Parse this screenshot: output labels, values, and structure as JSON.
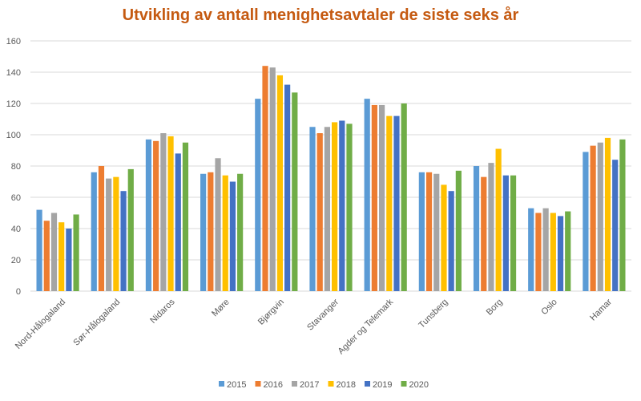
{
  "colors": {
    "title": "#c55a11",
    "series": [
      "#5b9bd5",
      "#ed7d31",
      "#a5a5a5",
      "#ffc000",
      "#4472c4",
      "#70ad47"
    ],
    "grid": "#d9d9d9",
    "axis_text": "#595959"
  },
  "chart_data": {
    "type": "bar",
    "title": "Utvikling av antall menighetsavtaler de siste seks år",
    "xlabel": "",
    "ylabel": "",
    "ylim": [
      0,
      160
    ],
    "yticks": [
      0,
      20,
      40,
      60,
      80,
      100,
      120,
      140,
      160
    ],
    "grid": true,
    "legend_position": "bottom",
    "categories": [
      "Nord-Hålogaland",
      "Sør-Hålogaland",
      "Nidaros",
      "Møre",
      "Bjørgvin",
      "Stavanger",
      "Agder og Telemark",
      "Tunsberg",
      "Borg",
      "Oslo",
      "Hamar"
    ],
    "series": [
      {
        "name": "2015",
        "values": [
          52,
          76,
          97,
          75,
          123,
          105,
          123,
          76,
          80,
          53,
          89
        ]
      },
      {
        "name": "2016",
        "values": [
          45,
          80,
          96,
          76,
          144,
          101,
          119,
          76,
          73,
          50,
          93
        ]
      },
      {
        "name": "2017",
        "values": [
          50,
          72,
          101,
          85,
          143,
          105,
          119,
          75,
          82,
          53,
          95
        ]
      },
      {
        "name": "2018",
        "values": [
          44,
          73,
          99,
          74,
          138,
          108,
          112,
          68,
          91,
          50,
          98
        ]
      },
      {
        "name": "2019",
        "values": [
          40,
          64,
          88,
          70,
          132,
          109,
          112,
          64,
          74,
          48,
          84
        ]
      },
      {
        "name": "2020",
        "values": [
          49,
          78,
          95,
          75,
          127,
          107,
          120,
          77,
          74,
          51,
          97
        ]
      }
    ]
  }
}
